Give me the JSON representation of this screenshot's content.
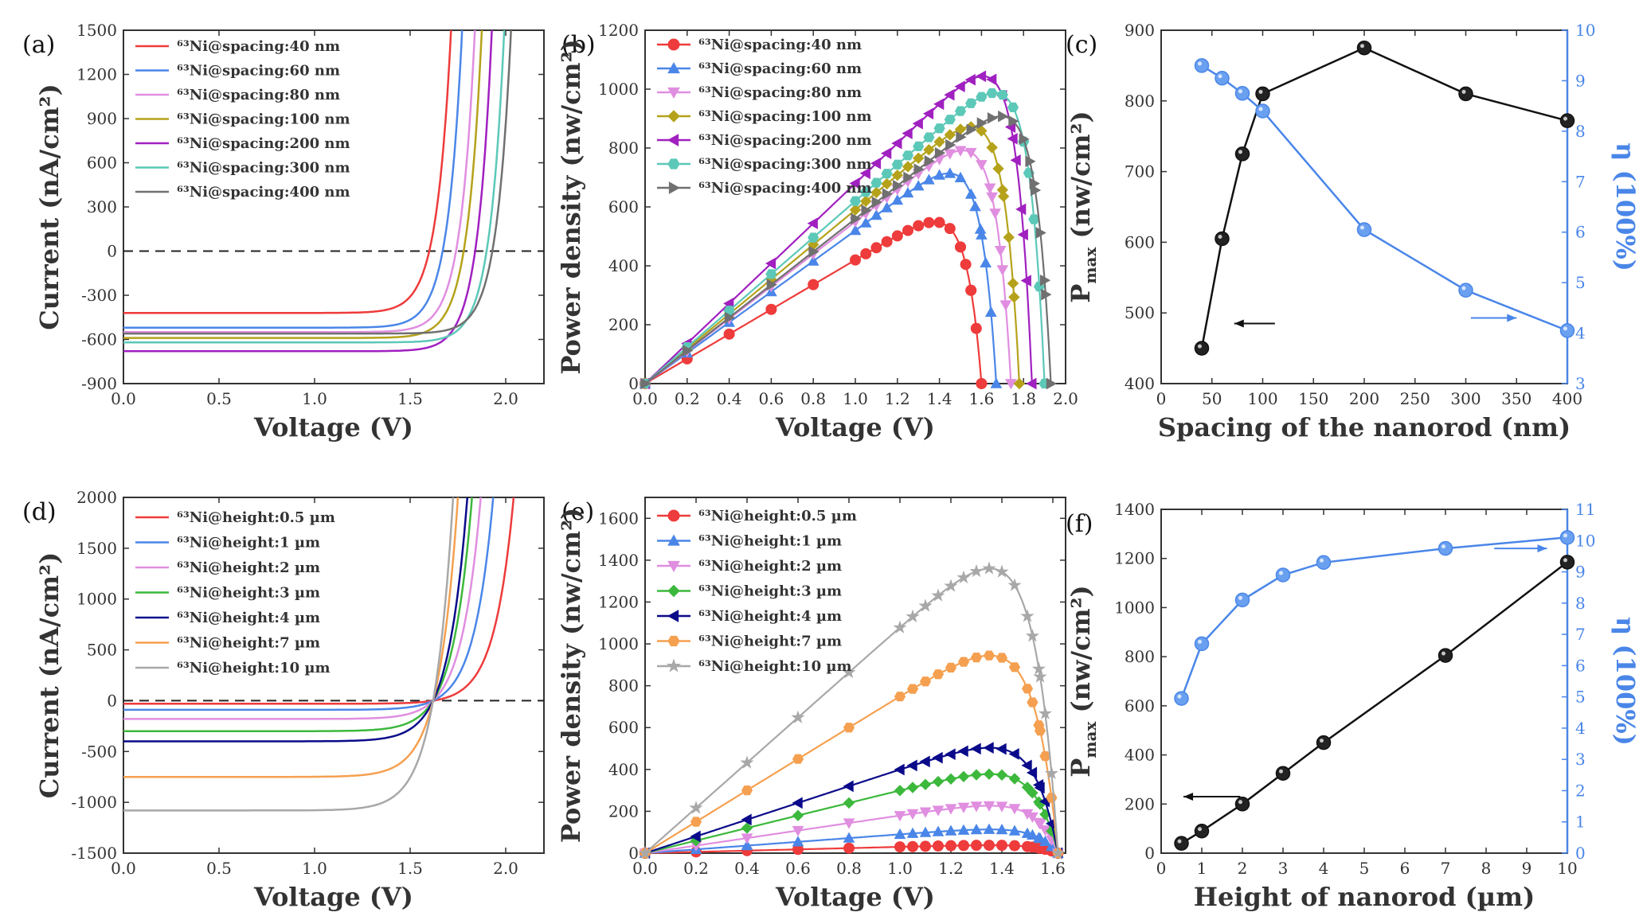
{
  "chart_data": [
    {
      "id": "a",
      "panel_label": "(a)",
      "type": "line",
      "xlabel": "Voltage (V)",
      "ylabel": "Current (nA/cm²)",
      "xlim": [
        0,
        2.2
      ],
      "ylim": [
        -900,
        1500
      ],
      "xticks": [
        "0.0",
        "0.5",
        "1.0",
        "1.5",
        "2.0"
      ],
      "yticks": [
        "-900",
        "-600",
        "-300",
        "0",
        "300",
        "600",
        "900",
        "1200",
        "1500"
      ],
      "zero_line": true,
      "series": [
        {
          "name": "⁶³Ni@spacing:40 nm",
          "color": "#ee3b3b",
          "isc": -420,
          "voc": 1.6,
          "n": 0.075
        },
        {
          "name": "⁶³Ni@spacing:60 nm",
          "color": "#4a86e8",
          "isc": -520,
          "voc": 1.67,
          "n": 0.075
        },
        {
          "name": "⁶³Ni@spacing:80 nm",
          "color": "#e08ee0",
          "isc": -550,
          "voc": 1.74,
          "n": 0.075
        },
        {
          "name": "⁶³Ni@spacing:100 nm",
          "color": "#b5a21a",
          "isc": -590,
          "voc": 1.78,
          "n": 0.075
        },
        {
          "name": "⁶³Ni@spacing:200 nm",
          "color": "#a020c0",
          "isc": -680,
          "voc": 1.84,
          "n": 0.075
        },
        {
          "name": "⁶³Ni@spacing:300 nm",
          "color": "#5cc8b8",
          "isc": -620,
          "voc": 1.9,
          "n": 0.075
        },
        {
          "name": "⁶³Ni@spacing:400 nm",
          "color": "#707070",
          "isc": -560,
          "voc": 1.93,
          "n": 0.075
        }
      ]
    },
    {
      "id": "b",
      "panel_label": "(b)",
      "type": "line",
      "xlabel": "Voltage (V)",
      "ylabel": "Power density (nw/cm²)",
      "xlim": [
        0,
        2.0
      ],
      "ylim": [
        0,
        1200
      ],
      "xticks": [
        "0.0",
        "0.2",
        "0.4",
        "0.6",
        "0.8",
        "1.0",
        "1.2",
        "1.4",
        "1.6",
        "1.8",
        "2.0"
      ],
      "yticks": [
        "0",
        "200",
        "400",
        "600",
        "800",
        "1000",
        "1200"
      ],
      "series": [
        {
          "name": "⁶³Ni@spacing:40 nm",
          "color": "#ee3b3b",
          "marker": "circle",
          "isc": 420,
          "voc": 1.6,
          "n": 0.075
        },
        {
          "name": "⁶³Ni@spacing:60 nm",
          "color": "#4a86e8",
          "marker": "triangle-up",
          "isc": 520,
          "voc": 1.67,
          "n": 0.075
        },
        {
          "name": "⁶³Ni@spacing:80 nm",
          "color": "#e08ee0",
          "marker": "triangle-down",
          "isc": 550,
          "voc": 1.74,
          "n": 0.075
        },
        {
          "name": "⁶³Ni@spacing:100 nm",
          "color": "#b5a21a",
          "marker": "diamond",
          "isc": 590,
          "voc": 1.78,
          "n": 0.075
        },
        {
          "name": "⁶³Ni@spacing:200 nm",
          "color": "#a020c0",
          "marker": "triangle-left",
          "isc": 680,
          "voc": 1.84,
          "n": 0.075
        },
        {
          "name": "⁶³Ni@spacing:300 nm",
          "color": "#5cc8b8",
          "marker": "hexagon",
          "isc": 620,
          "voc": 1.9,
          "n": 0.075
        },
        {
          "name": "⁶³Ni@spacing:400 nm",
          "color": "#707070",
          "marker": "triangle-right",
          "isc": 560,
          "voc": 1.93,
          "n": 0.075
        }
      ]
    },
    {
      "id": "c",
      "panel_label": "(c)",
      "type": "line",
      "xlabel": "Spacing of  the nanorod  (nm)",
      "ylabel": "Pmax (nw/cm²)",
      "ylabel_main": "P",
      "ylabel_sub": "max",
      "ylabel_rest": " (nw/cm²)",
      "y2label": "η (100%)",
      "xlim": [
        0,
        400
      ],
      "ylim": [
        400,
        900
      ],
      "y2lim": [
        3,
        10
      ],
      "xticks": [
        "0",
        "50",
        "100",
        "150",
        "200",
        "250",
        "300",
        "350",
        "400"
      ],
      "yticks": [
        "400",
        "500",
        "600",
        "700",
        "800",
        "900"
      ],
      "y2ticks": [
        "3",
        "4",
        "5",
        "6",
        "7",
        "8",
        "9",
        "10"
      ],
      "x": [
        40,
        60,
        80,
        100,
        200,
        300,
        400
      ],
      "series": [
        {
          "name": "Pmax",
          "axis": "left",
          "color": "#111111",
          "values": [
            450,
            605,
            725,
            810,
            875,
            810,
            772
          ]
        },
        {
          "name": "η",
          "axis": "right",
          "color": "#4a86e8",
          "values": [
            9.3,
            9.05,
            8.75,
            8.4,
            6.05,
            4.85,
            4.05
          ]
        }
      ],
      "arrows": [
        {
          "dir": "left",
          "color": "#111111",
          "x_from": 112,
          "x_to": 72,
          "y": 485
        },
        {
          "dir": "right",
          "color": "#4a86e8",
          "x_from": 305,
          "x_to": 350,
          "y": 4.3
        }
      ]
    },
    {
      "id": "d",
      "panel_label": "(d)",
      "type": "line",
      "xlabel": "Voltage (V)",
      "ylabel": "Current (nA/cm²)",
      "xlim": [
        0,
        2.2
      ],
      "ylim": [
        -1500,
        2000
      ],
      "xticks": [
        "0.0",
        "0.5",
        "1.0",
        "1.5",
        "2.0"
      ],
      "yticks": [
        "-1500",
        "-1000",
        "-500",
        "0",
        "500",
        "1000",
        "1500",
        "2000"
      ],
      "zero_line": true,
      "series": [
        {
          "name": "⁶³Ni@height:0.5 µm",
          "color": "#ee3b3b",
          "isc": -30,
          "voc": 1.62,
          "n": 0.1
        },
        {
          "name": "⁶³Ni@height:1 µm",
          "color": "#4a86e8",
          "isc": -90,
          "voc": 1.62,
          "n": 0.1
        },
        {
          "name": "⁶³Ni@height:2 µm",
          "color": "#e08ee0",
          "isc": -180,
          "voc": 1.62,
          "n": 0.1
        },
        {
          "name": "⁶³Ni@height:3 µm",
          "color": "#3cb83c",
          "isc": -300,
          "voc": 1.62,
          "n": 0.1
        },
        {
          "name": "⁶³Ni@height:4 µm",
          "color": "#0a0a8a",
          "isc": -400,
          "voc": 1.62,
          "n": 0.1
        },
        {
          "name": "⁶³Ni@height:7 µm",
          "color": "#f5a050",
          "isc": -750,
          "voc": 1.62,
          "n": 0.1
        },
        {
          "name": "⁶³Ni@height:10 µm",
          "color": "#a8a8a8",
          "isc": -1080,
          "voc": 1.62,
          "n": 0.1
        }
      ]
    },
    {
      "id": "e",
      "panel_label": "(e)",
      "type": "line",
      "xlabel": "Voltage (V)",
      "ylabel": "Power density (nw/cm²)",
      "xlim": [
        0,
        1.65
      ],
      "ylim": [
        0,
        1700
      ],
      "xticks": [
        "0.0",
        "0.2",
        "0.4",
        "0.6",
        "0.8",
        "1.0",
        "1.2",
        "1.4",
        "1.6"
      ],
      "yticks": [
        "0",
        "200",
        "400",
        "600",
        "800",
        "1000",
        "1200",
        "1400",
        "1600"
      ],
      "series": [
        {
          "name": "⁶³Ni@height:0.5 µm",
          "color": "#ee3b3b",
          "marker": "circle",
          "isc": 30,
          "voc": 1.62,
          "n": 0.1
        },
        {
          "name": "⁶³Ni@height:1 µm",
          "color": "#4a86e8",
          "marker": "triangle-up",
          "isc": 90,
          "voc": 1.62,
          "n": 0.1
        },
        {
          "name": "⁶³Ni@height:2 µm",
          "color": "#e08ee0",
          "marker": "triangle-down",
          "isc": 180,
          "voc": 1.62,
          "n": 0.1
        },
        {
          "name": "⁶³Ni@height:3 µm",
          "color": "#3cb83c",
          "marker": "diamond",
          "isc": 300,
          "voc": 1.62,
          "n": 0.1
        },
        {
          "name": "⁶³Ni@height:4 µm",
          "color": "#0a0a8a",
          "marker": "triangle-left",
          "isc": 400,
          "voc": 1.62,
          "n": 0.1
        },
        {
          "name": "⁶³Ni@height:7 µm",
          "color": "#f5a050",
          "marker": "hexagon",
          "isc": 750,
          "voc": 1.62,
          "n": 0.1
        },
        {
          "name": "⁶³Ni@height:10 µm",
          "color": "#a8a8a8",
          "marker": "star",
          "isc": 1080,
          "voc": 1.62,
          "n": 0.1
        }
      ]
    },
    {
      "id": "f",
      "panel_label": "(f)",
      "type": "line",
      "xlabel": "Height of nanorod (µm)",
      "ylabel": "Pmax (nw/cm²)",
      "ylabel_main": "P",
      "ylabel_sub": "max",
      "ylabel_rest": " (nw/cm²)",
      "y2label": "η (100%)",
      "xlim": [
        0,
        10
      ],
      "ylim": [
        0,
        1400
      ],
      "y2lim": [
        0,
        11
      ],
      "xticks": [
        "0",
        "1",
        "2",
        "3",
        "4",
        "5",
        "6",
        "7",
        "8",
        "9",
        "10"
      ],
      "yticks": [
        "0",
        "200",
        "400",
        "600",
        "800",
        "1000",
        "1200",
        "1400"
      ],
      "y2ticks": [
        "0",
        "1",
        "2",
        "3",
        "4",
        "5",
        "6",
        "7",
        "8",
        "9",
        "10",
        "11"
      ],
      "x": [
        0.5,
        1,
        2,
        3,
        4,
        7,
        10
      ],
      "series": [
        {
          "name": "Pmax",
          "axis": "left",
          "color": "#111111",
          "values": [
            40,
            90,
            200,
            325,
            450,
            805,
            1185
          ]
        },
        {
          "name": "η",
          "axis": "right",
          "color": "#4a86e8",
          "values": [
            4.95,
            6.7,
            8.1,
            8.9,
            9.3,
            9.75,
            10.1
          ]
        }
      ],
      "arrows": [
        {
          "dir": "left",
          "color": "#111111",
          "x_from": 1.95,
          "x_to": 0.55,
          "y": 230
        },
        {
          "dir": "right",
          "color": "#4a86e8",
          "x_from": 8.2,
          "x_to": 9.5,
          "y": 9.75
        }
      ]
    }
  ]
}
